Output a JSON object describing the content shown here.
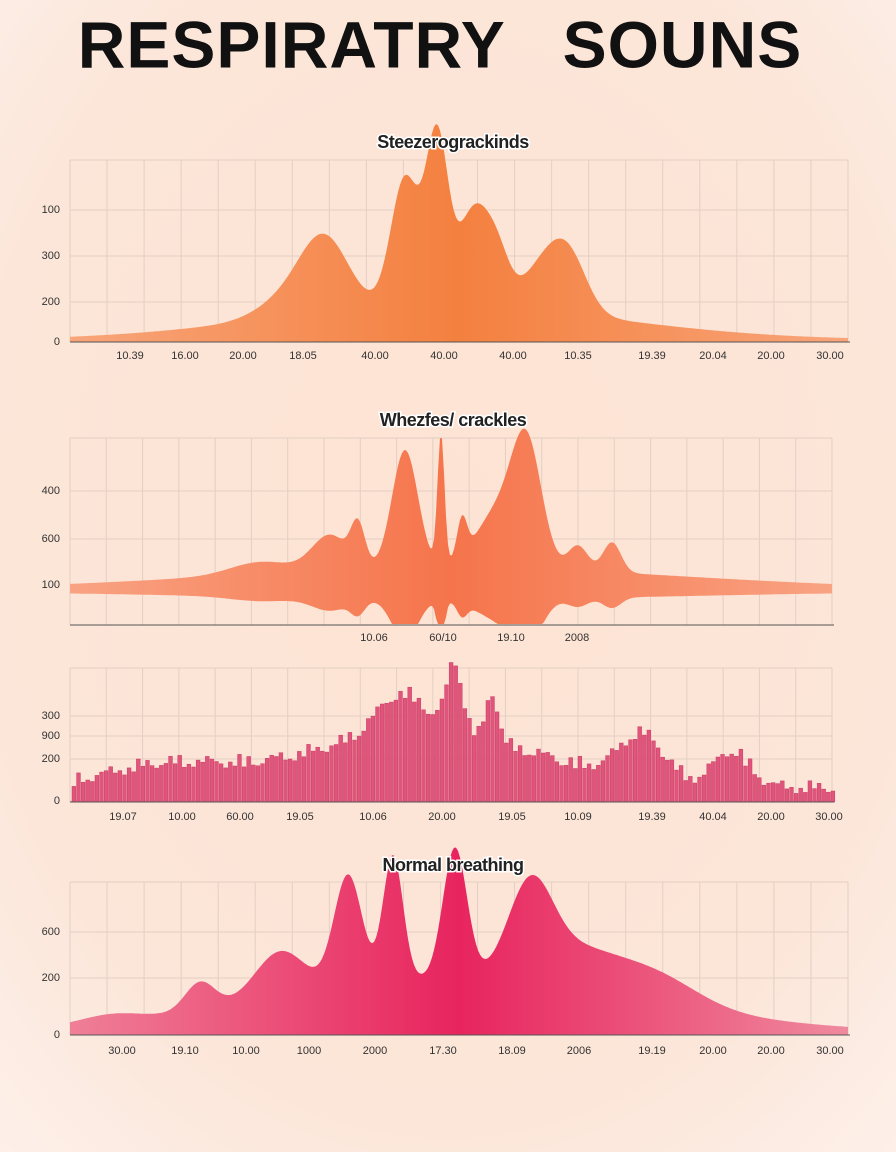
{
  "title": "RESPIRATRY   SOUNS",
  "panels": [
    {
      "title": "Steezerograckinds",
      "y_labels": [
        "100",
        "300",
        "200",
        "0"
      ],
      "x_labels": [
        "10.39",
        "16.00",
        "20.00",
        "18.05",
        "40.00",
        "40.00",
        "40.00",
        "10.35",
        "19.39",
        "20.04",
        "20.00",
        "30.00"
      ]
    },
    {
      "title": "Whezfes/ crackles",
      "y_labels": [
        "400",
        "600",
        "100"
      ],
      "x_labels": [
        "10.06",
        "60/10",
        "19.10",
        "2008"
      ]
    },
    {
      "y_labels": [
        "300",
        "900",
        "200",
        "0"
      ],
      "x_labels": [
        "19.07",
        "10.00",
        "60.00",
        "19.05",
        "10.06",
        "20.00",
        "19.05",
        "10.09",
        "19.39",
        "40.04",
        "20.00",
        "30.00"
      ]
    },
    {
      "title": "Normal breathing",
      "y_labels": [
        "600",
        "200",
        "0"
      ],
      "x_labels": [
        "30.00",
        "19.10",
        "10.00",
        "1000",
        "2000",
        "17.30",
        "18.09",
        "2006",
        "19.19",
        "20.00",
        "20.00",
        "30.00"
      ]
    }
  ]
}
